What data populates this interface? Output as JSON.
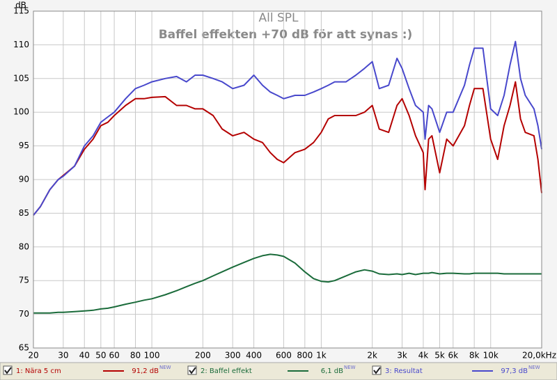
{
  "chart_data": {
    "type": "line",
    "title": "All SPL",
    "subtitle": "Baffel effekten +70 dB för att synas :)",
    "y_label": "dB",
    "log_x": true,
    "grid": true,
    "x": [
      20,
      22,
      25,
      28,
      30,
      35,
      40,
      45,
      50,
      55,
      60,
      70,
      80,
      90,
      100,
      120,
      140,
      160,
      180,
      200,
      230,
      260,
      300,
      350,
      400,
      450,
      500,
      550,
      600,
      700,
      800,
      900,
      1000,
      1100,
      1200,
      1400,
      1600,
      1800,
      2000,
      2200,
      2500,
      2800,
      3000,
      3300,
      3600,
      4000,
      4100,
      4300,
      4500,
      5000,
      5500,
      6000,
      7000,
      7500,
      8000,
      9000,
      10000,
      11000,
      12000,
      13000,
      14000,
      15000,
      16000,
      18000,
      19000,
      20000
    ],
    "xlim": [
      20,
      20000
    ],
    "xticks": [
      20,
      30,
      40,
      50,
      60,
      80,
      100,
      200,
      300,
      400,
      600,
      800,
      {
        "value": 1000,
        "label": "1k"
      },
      {
        "value": 2000,
        "label": "2k"
      },
      {
        "value": 3000,
        "label": "3k"
      },
      {
        "value": 4000,
        "label": "4k"
      },
      {
        "value": 5000,
        "label": "5k"
      },
      {
        "value": 6000,
        "label": "6k"
      },
      {
        "value": 8000,
        "label": "8k"
      },
      {
        "value": 10000,
        "label": "10k"
      },
      {
        "value": 20000,
        "label": "20,0kHz"
      }
    ],
    "ylim": [
      65,
      115
    ],
    "yticks": [
      65,
      70,
      75,
      80,
      85,
      90,
      95,
      100,
      105,
      110,
      115
    ],
    "series": [
      {
        "name": "1: Nära 5 cm",
        "color": "#b40000",
        "legend_value": "91,2 dB",
        "legend_badge": "NEW",
        "values": [
          84.7,
          86,
          88.5,
          90,
          90.6,
          92,
          94.5,
          96,
          98,
          98.5,
          99.5,
          101,
          102,
          102,
          102.2,
          102.3,
          101,
          101,
          100.5,
          100.5,
          99.5,
          97.5,
          96.5,
          97,
          96,
          95.5,
          94,
          93,
          92.5,
          94,
          94.5,
          95.5,
          97,
          99,
          99.5,
          99.5,
          99.5,
          100,
          101,
          97.5,
          97,
          101,
          102,
          99.5,
          96.5,
          94,
          88.5,
          96,
          96.5,
          91,
          96,
          95,
          98,
          101,
          103.5,
          103.5,
          96,
          93,
          98,
          101,
          104.5,
          99,
          97,
          96.5,
          93,
          88
        ]
      },
      {
        "name": "2: Baffel effekt",
        "color": "#1a6b3a",
        "legend_value": "6,1 dB",
        "legend_badge": "NEW",
        "values": [
          70.2,
          70.2,
          70.2,
          70.3,
          70.3,
          70.4,
          70.5,
          70.6,
          70.8,
          70.9,
          71.1,
          71.5,
          71.8,
          72.1,
          72.3,
          72.9,
          73.5,
          74.1,
          74.6,
          75,
          75.7,
          76.3,
          77,
          77.7,
          78.3,
          78.7,
          78.9,
          78.8,
          78.6,
          77.6,
          76.3,
          75.3,
          74.9,
          74.8,
          75,
          75.7,
          76.3,
          76.6,
          76.4,
          76,
          75.9,
          76,
          75.9,
          76.1,
          75.9,
          76.1,
          76.1,
          76.1,
          76.2,
          76,
          76.1,
          76.1,
          76,
          76,
          76.1,
          76.1,
          76.1,
          76.1,
          76,
          76,
          76,
          76,
          76,
          76,
          76,
          76
        ]
      },
      {
        "name": "3: Resultat",
        "color": "#4848cc",
        "legend_value": "97,3 dB",
        "legend_badge": "NEW",
        "values": [
          84.7,
          86,
          88.5,
          90,
          90.5,
          92,
          95,
          96.5,
          98.5,
          99.3,
          100,
          102,
          103.5,
          104,
          104.5,
          105,
          105.3,
          104.5,
          105.5,
          105.5,
          105,
          104.5,
          103.5,
          104,
          105.5,
          104,
          103,
          102.5,
          102,
          102.5,
          102.5,
          103,
          103.5,
          104,
          104.5,
          104.5,
          105.5,
          106.5,
          107.5,
          103.5,
          104,
          108,
          106.5,
          103.5,
          101,
          100,
          96,
          101,
          100.5,
          97,
          100,
          100,
          104,
          107,
          109.5,
          109.5,
          100.5,
          99.5,
          102.5,
          107,
          110.5,
          105,
          102.5,
          100.5,
          98,
          94.5
        ]
      }
    ]
  }
}
